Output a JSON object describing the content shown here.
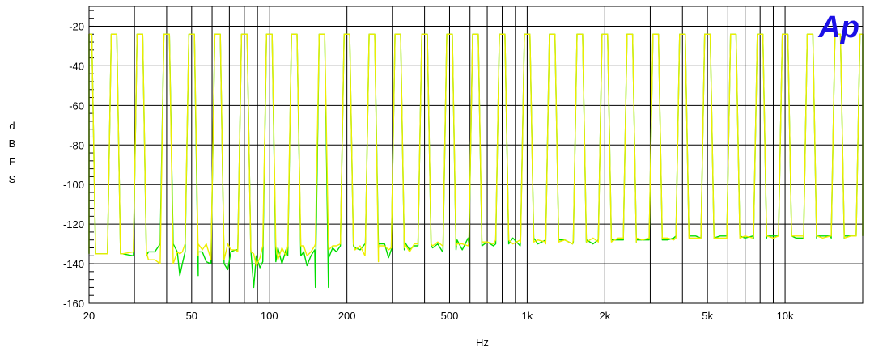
{
  "chart_data": {
    "type": "line",
    "logo_text": "Ap",
    "xlabel": "Hz",
    "ylabel": "dBFS",
    "x_scale": "log",
    "xlim": [
      20,
      20000
    ],
    "ylim": [
      -160,
      -10
    ],
    "grid": true,
    "y_ticks": [
      -20,
      -40,
      -60,
      -80,
      -100,
      -120,
      -140,
      -160
    ],
    "x_ticks": [
      {
        "value": 20,
        "label": "20"
      },
      {
        "value": 50,
        "label": "50"
      },
      {
        "value": 100,
        "label": "100"
      },
      {
        "value": 200,
        "label": "200"
      },
      {
        "value": 500,
        "label": "500"
      },
      {
        "value": 1000,
        "label": "1k"
      },
      {
        "value": 2000,
        "label": "2k"
      },
      {
        "value": 5000,
        "label": "5k"
      },
      {
        "value": 10000,
        "label": "10k"
      }
    ],
    "x_gridlines": [
      20,
      30,
      40,
      50,
      60,
      70,
      80,
      90,
      100,
      200,
      300,
      400,
      500,
      600,
      700,
      800,
      900,
      1000,
      2000,
      3000,
      4000,
      5000,
      6000,
      7000,
      8000,
      9000,
      10000,
      20000
    ],
    "tone_frequencies": [
      20,
      25,
      31.5,
      40,
      50,
      63,
      80,
      100,
      125,
      160,
      200,
      250,
      315,
      400,
      500,
      630,
      800,
      1000,
      1250,
      1600,
      2000,
      2500,
      3150,
      4000,
      5000,
      6300,
      8000,
      10000,
      12500,
      16000,
      20000
    ],
    "peak_level": -24,
    "series": [
      {
        "color": "#00dd00",
        "points": [
          [
            20,
            -135
          ],
          [
            21,
            -135
          ],
          [
            24,
            -135
          ],
          [
            26,
            -135
          ],
          [
            27,
            -135
          ],
          [
            30,
            -136
          ],
          [
            33,
            -136
          ],
          [
            34,
            -134
          ],
          [
            36,
            -134
          ],
          [
            39,
            -138
          ],
          [
            40,
            -130
          ],
          [
            41,
            -132
          ],
          [
            44,
            -134
          ],
          [
            45,
            -146
          ],
          [
            46,
            -140
          ],
          [
            48,
            -143
          ],
          [
            51,
            -134
          ],
          [
            53,
            -146
          ],
          [
            55,
            -134
          ],
          [
            57,
            -139
          ],
          [
            60,
            -138
          ],
          [
            63,
            -140
          ],
          [
            66,
            -129
          ],
          [
            69,
            -143
          ],
          [
            71,
            -134
          ],
          [
            74,
            -133
          ],
          [
            76,
            -144
          ],
          [
            78,
            -151
          ],
          [
            82,
            -133
          ],
          [
            84,
            -144
          ],
          [
            87,
            -152
          ],
          [
            89,
            -136
          ],
          [
            92,
            -142
          ],
          [
            96,
            -136
          ],
          [
            100,
            -139
          ],
          [
            104,
            -134
          ],
          [
            108,
            -132
          ],
          [
            112,
            -140
          ],
          [
            116,
            -133
          ],
          [
            120,
            -145
          ],
          [
            124,
            -136
          ],
          [
            128,
            -143
          ],
          [
            132,
            -130
          ],
          [
            136,
            -134
          ],
          [
            140,
            -141
          ],
          [
            145,
            -136
          ],
          [
            150,
            -133
          ],
          [
            155,
            -139
          ],
          [
            160,
            -152
          ],
          [
            165,
            -133
          ],
          [
            170,
            -137
          ],
          [
            176,
            -132
          ],
          [
            182,
            -134
          ],
          [
            190,
            -134
          ],
          [
            195,
            -132
          ],
          [
            205,
            -131
          ],
          [
            215,
            -132
          ],
          [
            225,
            -133
          ],
          [
            235,
            -130
          ],
          [
            245,
            -141
          ],
          [
            255,
            -130
          ],
          [
            265,
            -132
          ],
          [
            280,
            -130
          ],
          [
            290,
            -137
          ],
          [
            305,
            -130
          ],
          [
            320,
            -133
          ],
          [
            335,
            -129
          ],
          [
            350,
            -133
          ],
          [
            365,
            -131
          ],
          [
            380,
            -135
          ],
          [
            395,
            -131
          ],
          [
            410,
            -129
          ],
          [
            430,
            -132
          ],
          [
            450,
            -130
          ],
          [
            470,
            -134
          ],
          [
            490,
            -128
          ],
          [
            510,
            -133
          ],
          [
            535,
            -128
          ],
          [
            560,
            -133
          ],
          [
            590,
            -127
          ],
          [
            620,
            -131
          ],
          [
            660,
            -130
          ],
          [
            700,
            -129
          ],
          [
            740,
            -131
          ],
          [
            780,
            -128
          ],
          [
            820,
            -130
          ],
          [
            880,
            -127
          ],
          [
            940,
            -131
          ],
          [
            990,
            -127
          ],
          [
            1050,
            -130
          ],
          [
            1100,
            -130
          ],
          [
            1180,
            -129
          ],
          [
            1220,
            -128
          ],
          [
            1300,
            -130
          ],
          [
            1400,
            -128
          ],
          [
            1500,
            -130
          ],
          [
            1600,
            -129
          ],
          [
            1700,
            -128
          ],
          [
            1800,
            -130
          ],
          [
            1900,
            -128
          ],
          [
            2000,
            -128
          ],
          [
            2100,
            -130
          ],
          [
            2250,
            -128
          ],
          [
            2400,
            -129
          ],
          [
            2500,
            -128
          ],
          [
            2650,
            -129
          ],
          [
            2800,
            -128
          ],
          [
            3000,
            -128
          ],
          [
            3150,
            -128
          ],
          [
            3300,
            -127
          ],
          [
            3500,
            -128
          ],
          [
            3700,
            -127
          ],
          [
            3900,
            -127
          ],
          [
            4000,
            -126
          ],
          [
            4200,
            -127
          ],
          [
            4500,
            -126
          ],
          [
            4800,
            -127
          ],
          [
            5000,
            -127
          ],
          [
            5300,
            -126
          ],
          [
            5600,
            -126
          ],
          [
            6000,
            -127
          ],
          [
            6300,
            -126
          ],
          [
            6600,
            -126
          ],
          [
            7000,
            -127
          ],
          [
            7500,
            -126
          ],
          [
            8000,
            -127
          ],
          [
            8500,
            -126
          ],
          [
            9000,
            -126
          ],
          [
            9500,
            -126
          ],
          [
            10000,
            -126
          ],
          [
            11000,
            -127
          ],
          [
            11800,
            -126
          ],
          [
            12500,
            -127
          ],
          [
            13300,
            -126
          ],
          [
            14000,
            -126
          ],
          [
            15000,
            -126
          ],
          [
            16000,
            -127
          ],
          [
            17000,
            -126
          ],
          [
            18000,
            -126
          ],
          [
            19000,
            -126
          ],
          [
            20000,
            -126
          ]
        ]
      },
      {
        "color": "#eeee00",
        "points": [
          [
            20,
            -135
          ],
          [
            21,
            -135
          ],
          [
            24,
            -135
          ],
          [
            26,
            -135
          ],
          [
            27,
            -135
          ],
          [
            30,
            -134
          ],
          [
            33,
            -134
          ],
          [
            34,
            -138
          ],
          [
            36,
            -138
          ],
          [
            39,
            -142
          ],
          [
            40,
            -140
          ],
          [
            41,
            -143
          ],
          [
            44,
            -134
          ],
          [
            45,
            -135
          ],
          [
            46,
            -134
          ],
          [
            48,
            -136
          ],
          [
            51,
            -130
          ],
          [
            53,
            -136
          ],
          [
            55,
            -133
          ],
          [
            57,
            -130
          ],
          [
            60,
            -129
          ],
          [
            63,
            -138
          ],
          [
            66,
            -136
          ],
          [
            69,
            -130
          ],
          [
            71,
            -133
          ],
          [
            74,
            -133
          ],
          [
            76,
            -131
          ],
          [
            78,
            -136
          ],
          [
            82,
            -134
          ],
          [
            84,
            -137
          ],
          [
            87,
            -135
          ],
          [
            89,
            -141
          ],
          [
            92,
            -137
          ],
          [
            96,
            -133
          ],
          [
            100,
            -131
          ],
          [
            104,
            -131
          ],
          [
            108,
            -138
          ],
          [
            112,
            -132
          ],
          [
            116,
            -136
          ],
          [
            120,
            -133
          ],
          [
            124,
            -131
          ],
          [
            128,
            -137
          ],
          [
            132,
            -133
          ],
          [
            136,
            -131
          ],
          [
            140,
            -136
          ],
          [
            145,
            -134
          ],
          [
            150,
            -131
          ],
          [
            155,
            -134
          ],
          [
            160,
            -130
          ],
          [
            165,
            -134
          ],
          [
            170,
            -133
          ],
          [
            176,
            -131
          ],
          [
            182,
            -131
          ],
          [
            190,
            -133
          ],
          [
            195,
            -136
          ],
          [
            205,
            -130
          ],
          [
            215,
            -133
          ],
          [
            225,
            -131
          ],
          [
            235,
            -136
          ],
          [
            245,
            -134
          ],
          [
            255,
            -131
          ],
          [
            265,
            -139
          ],
          [
            280,
            -131
          ],
          [
            290,
            -133
          ],
          [
            305,
            -130
          ],
          [
            320,
            -132
          ],
          [
            335,
            -130
          ],
          [
            350,
            -134
          ],
          [
            365,
            -130
          ],
          [
            380,
            -131
          ],
          [
            395,
            -130
          ],
          [
            410,
            -132
          ],
          [
            430,
            -131
          ],
          [
            450,
            -129
          ],
          [
            470,
            -131
          ],
          [
            490,
            -130
          ],
          [
            510,
            -131
          ],
          [
            535,
            -130
          ],
          [
            560,
            -130
          ],
          [
            590,
            -131
          ],
          [
            620,
            -129
          ],
          [
            660,
            -131
          ],
          [
            700,
            -129
          ],
          [
            740,
            -130
          ],
          [
            780,
            -130
          ],
          [
            820,
            -128
          ],
          [
            880,
            -130
          ],
          [
            940,
            -128
          ],
          [
            990,
            -129
          ],
          [
            1050,
            -131
          ],
          [
            1100,
            -128
          ],
          [
            1180,
            -130
          ],
          [
            1220,
            -129
          ],
          [
            1300,
            -130
          ],
          [
            1400,
            -128
          ],
          [
            1500,
            -130
          ],
          [
            1600,
            -128
          ],
          [
            1700,
            -129
          ],
          [
            1800,
            -127
          ],
          [
            1900,
            -129
          ],
          [
            2000,
            -129
          ],
          [
            2100,
            -130
          ],
          [
            2250,
            -127
          ],
          [
            2400,
            -129
          ],
          [
            2500,
            -127
          ],
          [
            2650,
            -129
          ],
          [
            2800,
            -128
          ],
          [
            3000,
            -129
          ],
          [
            3150,
            -127
          ],
          [
            3300,
            -128
          ],
          [
            3500,
            -127
          ],
          [
            3700,
            -128
          ],
          [
            3900,
            -127
          ],
          [
            4000,
            -127
          ],
          [
            4200,
            -126
          ],
          [
            4500,
            -127
          ],
          [
            4800,
            -126
          ],
          [
            5000,
            -127
          ],
          [
            5300,
            -126
          ],
          [
            5600,
            -127
          ],
          [
            6000,
            -126
          ],
          [
            6300,
            -127
          ],
          [
            6600,
            -126
          ],
          [
            7000,
            -126
          ],
          [
            7500,
            -127
          ],
          [
            8000,
            -126
          ],
          [
            8500,
            -126
          ],
          [
            9000,
            -127
          ],
          [
            9500,
            -126
          ],
          [
            10000,
            -126
          ],
          [
            11000,
            -126
          ],
          [
            11800,
            -127
          ],
          [
            12500,
            -126
          ],
          [
            13300,
            -126
          ],
          [
            14000,
            -127
          ],
          [
            15000,
            -126
          ],
          [
            16000,
            -126
          ],
          [
            17000,
            -127
          ],
          [
            18000,
            -126
          ],
          [
            19000,
            -126
          ],
          [
            20000,
            -126
          ]
        ]
      }
    ]
  }
}
